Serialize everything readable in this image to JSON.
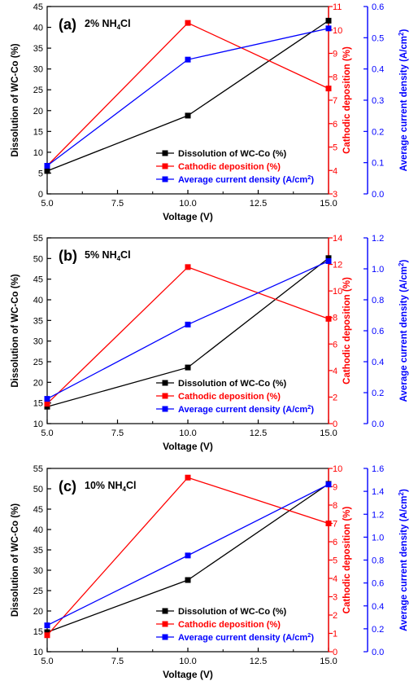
{
  "chart_data": [
    {
      "type": "line",
      "panel_label": "(a)",
      "title": "2% NH",
      "title_sub": "4",
      "title_tail": "Cl",
      "xlabel": "Voltage (V)",
      "x_ticks": [
        "5.0",
        "7.5",
        "10.0",
        "12.5",
        "15.0"
      ],
      "x_range": [
        5,
        15
      ],
      "x": [
        5,
        10,
        15
      ],
      "axes": [
        {
          "side": "left",
          "label": "Dissolution of WC-Co (%)",
          "range": [
            0,
            45
          ],
          "ticks": [
            "0",
            "5",
            "10",
            "15",
            "20",
            "25",
            "30",
            "35",
            "40",
            "45"
          ],
          "color": "#000000"
        },
        {
          "side": "right",
          "label": "Cathodic deposition (%)",
          "range": [
            3,
            11
          ],
          "ticks": [
            "3",
            "4",
            "5",
            "6",
            "7",
            "8",
            "9",
            "10",
            "11"
          ],
          "color": "#ff0000"
        },
        {
          "side": "right2",
          "label": "Average current density (A/cm",
          "label_sup": "2",
          "label_tail": ")",
          "range": [
            0,
            0.6
          ],
          "ticks": [
            "0.0",
            "0.1",
            "0.2",
            "0.3",
            "0.4",
            "0.5",
            "0.6"
          ],
          "color": "#0000ff"
        }
      ],
      "series": [
        {
          "name": "Dissolution of WC-Co (%)",
          "axis": 0,
          "values": [
            5.5,
            18.8,
            41.6
          ],
          "color": "#000000"
        },
        {
          "name": "Cathodic deposition (%)",
          "axis": 1,
          "values": [
            4.2,
            10.3,
            7.5
          ],
          "color": "#ff0000"
        },
        {
          "name": "Average current density (A/cm",
          "name_sup": "2",
          "name_tail": ")",
          "axis": 2,
          "values": [
            0.09,
            0.43,
            0.53
          ],
          "color": "#0000ff"
        }
      ],
      "legend": "bottom-right"
    },
    {
      "type": "line",
      "panel_label": "(b)",
      "title": "5% NH",
      "title_sub": "4",
      "title_tail": "Cl",
      "xlabel": "Voltage (V)",
      "x_ticks": [
        "5.0",
        "7.5",
        "10.0",
        "12.5",
        "15.0"
      ],
      "x_range": [
        5,
        15
      ],
      "x": [
        5,
        10,
        15
      ],
      "axes": [
        {
          "side": "left",
          "label": "Dissolution of WC-Co (%)",
          "range": [
            10,
            55
          ],
          "ticks": [
            "10",
            "15",
            "20",
            "25",
            "30",
            "35",
            "40",
            "45",
            "50",
            "55"
          ],
          "color": "#000000"
        },
        {
          "side": "right",
          "label": "Cathodic deposition (%)",
          "range": [
            0,
            14
          ],
          "ticks": [
            "0",
            "2",
            "4",
            "6",
            "8",
            "10",
            "12",
            "14"
          ],
          "color": "#ff0000"
        },
        {
          "side": "right2",
          "label": "Average current density (A/cm",
          "label_sup": "2",
          "label_tail": ")",
          "range": [
            0,
            1.2
          ],
          "ticks": [
            "0.0",
            "0.2",
            "0.4",
            "0.6",
            "0.8",
            "1.0",
            "1.2"
          ],
          "color": "#0000ff"
        }
      ],
      "series": [
        {
          "name": "Dissolution of WC-Co (%)",
          "axis": 0,
          "values": [
            14.1,
            23.6,
            50.1
          ],
          "color": "#000000"
        },
        {
          "name": "Cathodic deposition (%)",
          "axis": 1,
          "values": [
            1.5,
            11.8,
            7.9
          ],
          "color": "#ff0000"
        },
        {
          "name": "Average current density (A/cm",
          "name_sup": "2",
          "name_tail": ")",
          "axis": 2,
          "values": [
            0.16,
            0.64,
            1.05
          ],
          "color": "#0000ff"
        }
      ],
      "legend": "bottom-right"
    },
    {
      "type": "line",
      "panel_label": "(c)",
      "title": "10% NH",
      "title_sub": "4",
      "title_tail": "Cl",
      "xlabel": "Voltage (V)",
      "x_ticks": [
        "5.0",
        "7.5",
        "10.0",
        "12.5",
        "15.0"
      ],
      "x_range": [
        5,
        15
      ],
      "x": [
        5,
        10,
        15
      ],
      "axes": [
        {
          "side": "left",
          "label": "Dissolution of WC-Co (%)",
          "range": [
            10,
            55
          ],
          "ticks": [
            "10",
            "15",
            "20",
            "25",
            "30",
            "35",
            "40",
            "45",
            "50",
            "55"
          ],
          "color": "#000000"
        },
        {
          "side": "right",
          "label": "Cathodic deposition (%)",
          "range": [
            0,
            10
          ],
          "ticks": [
            "0",
            "1",
            "2",
            "3",
            "4",
            "5",
            "6",
            "7",
            "8",
            "9",
            "10"
          ],
          "color": "#ff0000"
        },
        {
          "side": "right2",
          "label": "Average current density (A/cm",
          "label_sup": "2",
          "label_tail": ")",
          "range": [
            0,
            1.6
          ],
          "ticks": [
            "0.0",
            "0.2",
            "0.4",
            "0.6",
            "0.8",
            "1.0",
            "1.2",
            "1.4",
            "1.6"
          ],
          "color": "#0000ff"
        }
      ],
      "series": [
        {
          "name": "Dissolution of WC-Co (%)",
          "axis": 0,
          "values": [
            14.8,
            27.6,
            51.2
          ],
          "color": "#000000"
        },
        {
          "name": "Cathodic deposition (%)",
          "axis": 1,
          "values": [
            0.9,
            9.5,
            7.0
          ],
          "color": "#ff0000"
        },
        {
          "name": "Average current density (A/cm",
          "name_sup": "2",
          "name_tail": ")",
          "axis": 2,
          "values": [
            0.23,
            0.84,
            1.46
          ],
          "color": "#0000ff"
        }
      ],
      "legend": "bottom-right"
    }
  ]
}
